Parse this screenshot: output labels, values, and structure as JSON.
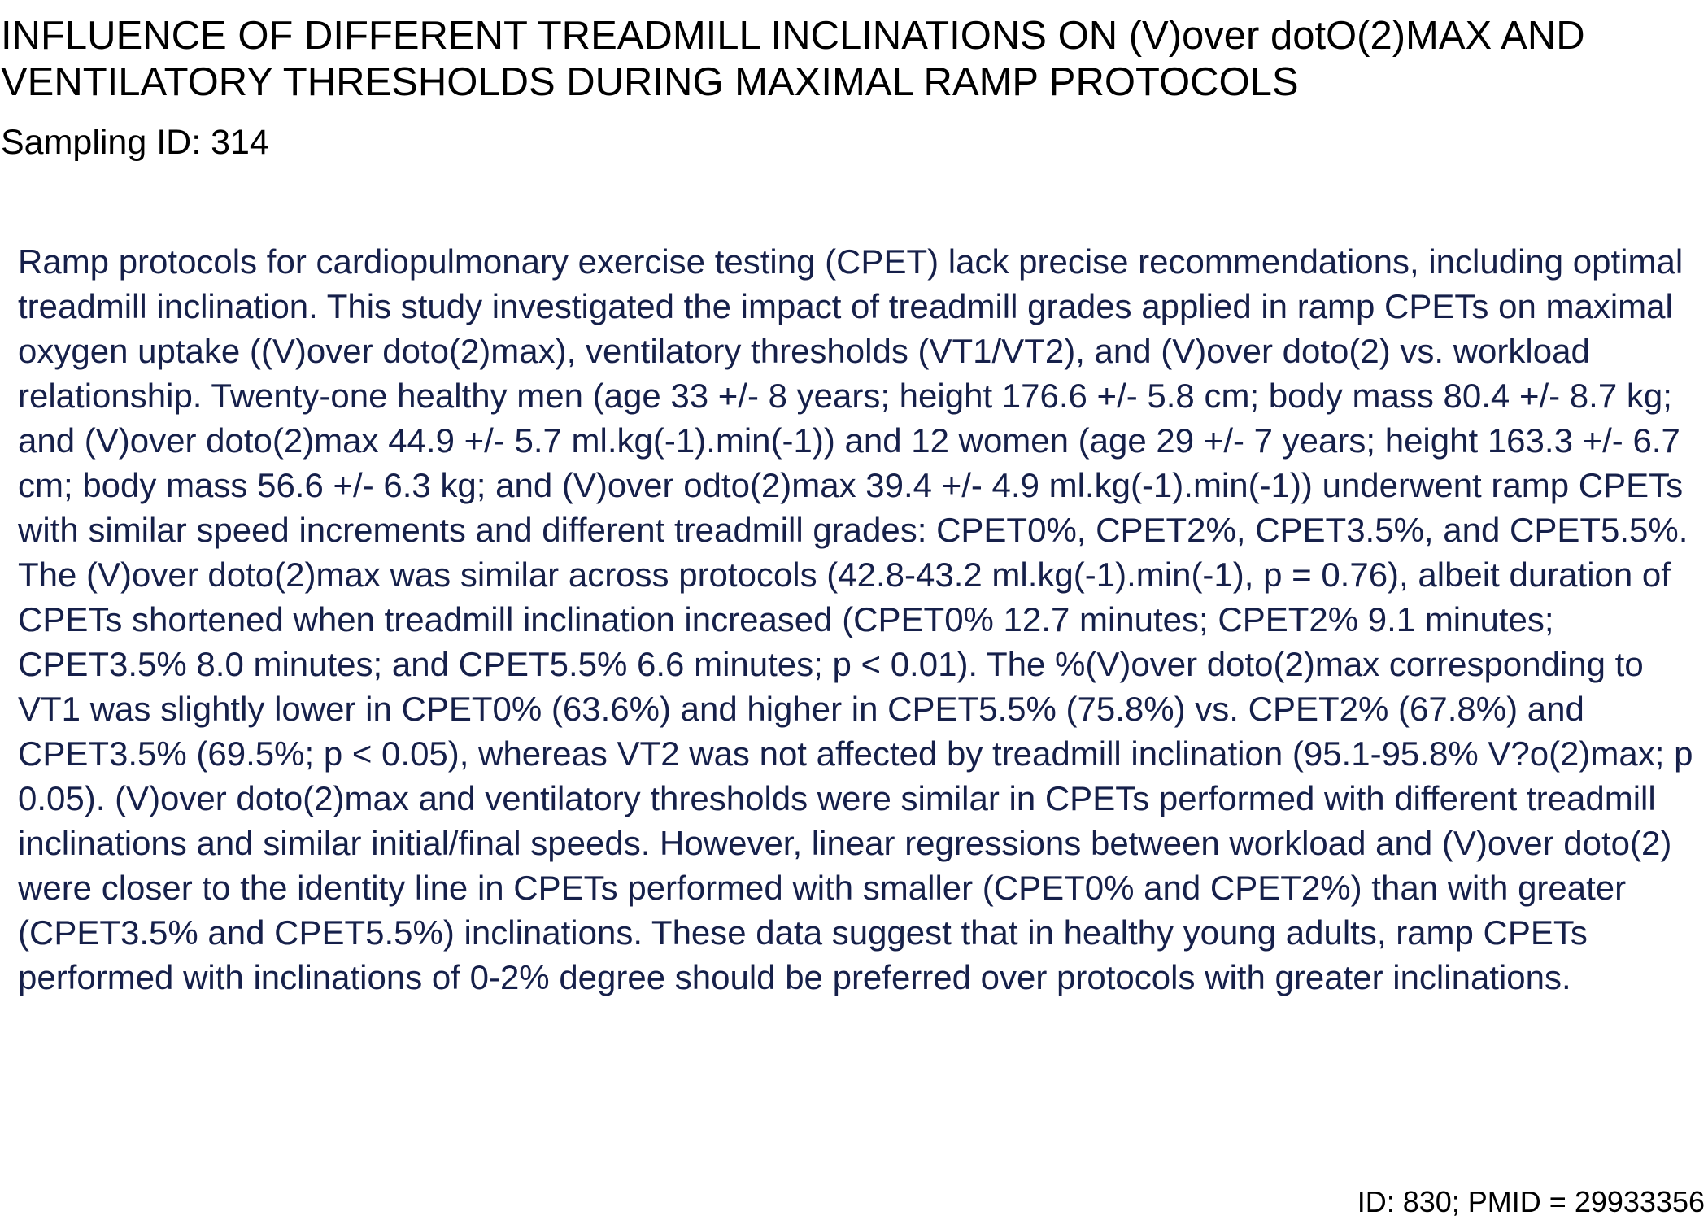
{
  "document": {
    "title_lines": [
      "INFLUENCE OF DIFFERENT TREADMILL INCLINATIONS ON (V)over dotO(2)MAX AND",
      "VENTILATORY THRESHOLDS DURING MAXIMAL RAMP PROTOCOLS"
    ],
    "sampling_id": "Sampling ID: 314",
    "abstract": "Ramp protocols for cardiopulmonary exercise testing (CPET) lack precise recommendations, including optimal treadmill inclination. This study investigated the impact of treadmill grades applied in ramp CPETs on maximal oxygen uptake ((V)over doto(2)max), ventilatory thresholds (VT1/VT2), and (V)over doto(2) vs. workload relationship. Twenty-one healthy men (age 33 +/- 8 years; height 176.6 +/- 5.8 cm; body mass 80.4 +/- 8.7 kg; and (V)over doto(2)max 44.9 +/- 5.7 ml.kg(-1).min(-1)) and 12 women (age 29 +/- 7 years; height 163.3 +/- 6.7 cm; body mass 56.6 +/- 6.3 kg; and (V)over odto(2)max 39.4 +/- 4.9 ml.kg(-1).min(-1)) underwent ramp CPETs with similar speed increments and different treadmill grades: CPET0%, CPET2%, CPET3.5%, and CPET5.5%. The (V)over doto(2)max was similar across protocols (42.8-43.2 ml.kg(-1).min(-1), p = 0.76), albeit duration of CPETs shortened when treadmill inclination increased (CPET0% 12.7 minutes; CPET2% 9.1 minutes; CPET3.5% 8.0 minutes; and CPET5.5% 6.6 minutes; p < 0.01). The %(V)over doto(2)max corresponding to VT1 was slightly lower in CPET0% (63.6%) and higher in CPET5.5% (75.8%) vs. CPET2% (67.8%) and CPET3.5% (69.5%; p < 0.05), whereas VT2 was not affected by treadmill inclination (95.1-95.8% V?o(2)max; p 0.05). (V)over doto(2)max and ventilatory thresholds were similar in CPETs performed with different treadmill inclinations and similar initial/final speeds. However, linear regressions between workload and (V)over doto(2) were closer to the identity line in CPETs performed with smaller (CPET0% and CPET2%) than with greater (CPET3.5% and CPET5.5%) inclinations. These data suggest that in healthy young adults, ramp CPETs performed with inclinations of 0-2% degree should be preferred over protocols with greater inclinations.",
    "footer_id": "ID: 830; PMID = 29933356"
  },
  "colors": {
    "title_text": "#000000",
    "abstract_text": "#16204a",
    "background": "#ffffff"
  }
}
